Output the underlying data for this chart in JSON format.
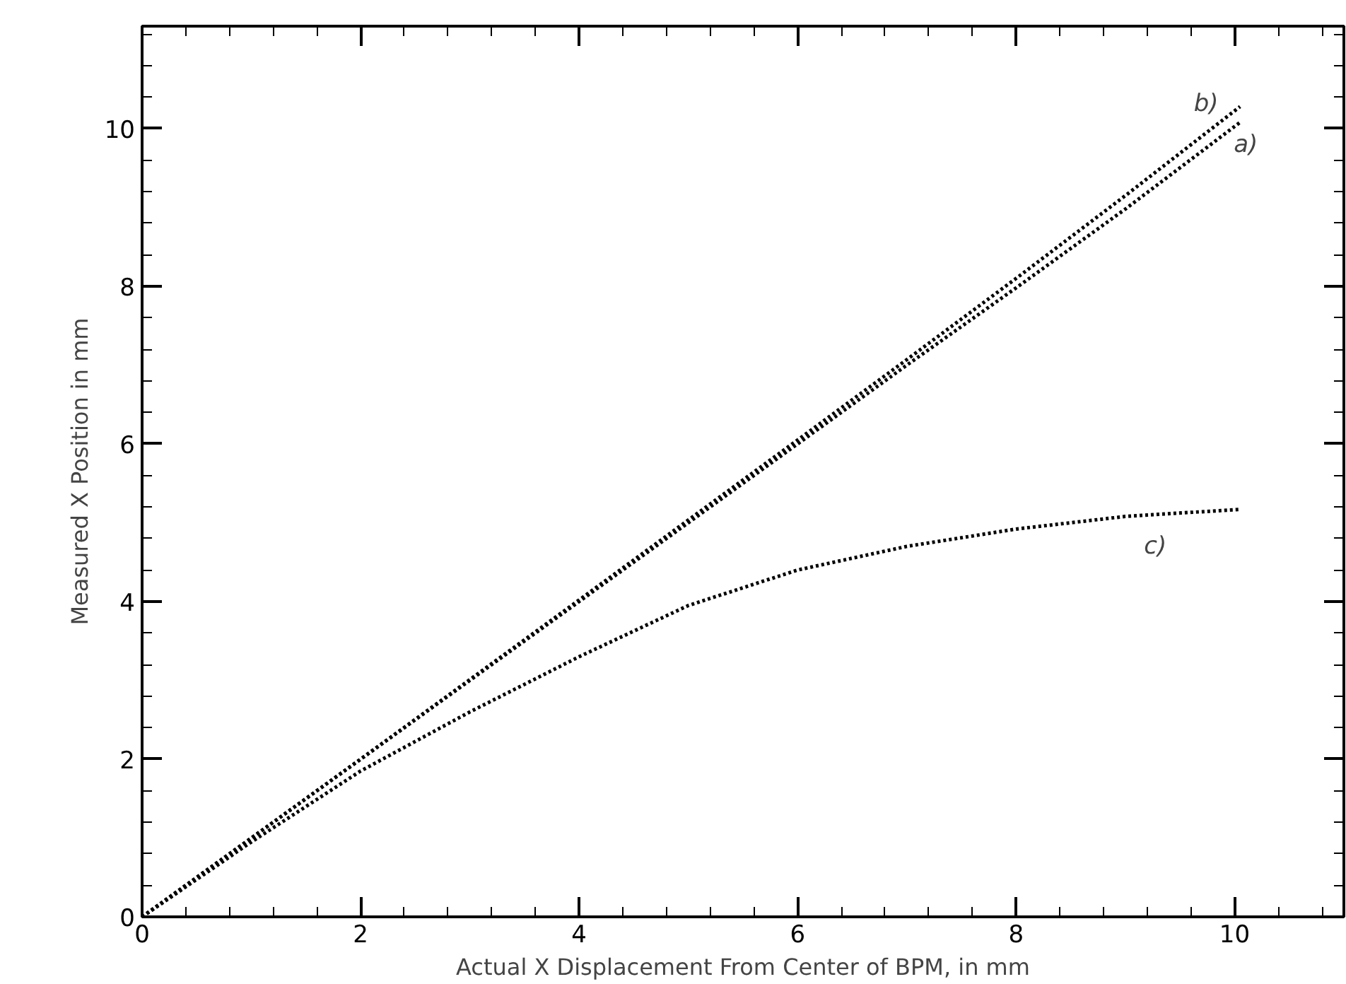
{
  "chart_data": {
    "type": "line",
    "xlabel": "Actual X Displacement From Center of BPM, in mm",
    "ylabel": "Measured X Position in mm",
    "xlim": [
      0,
      11
    ],
    "ylim": [
      0,
      11.3
    ],
    "xticks": [
      0,
      2,
      4,
      6,
      8,
      10
    ],
    "yticks": [
      0,
      2,
      4,
      6,
      8,
      10
    ],
    "grid": false,
    "legend": false,
    "line_style": "dotted",
    "marker": "none",
    "series": [
      {
        "name": "a)",
        "color": "#000000",
        "x": [
          0,
          2,
          4,
          6,
          7,
          8,
          9,
          10.05
        ],
        "values": [
          0,
          2.0,
          4.0,
          6.0,
          7.0,
          7.98,
          8.98,
          10.08
        ]
      },
      {
        "name": "b)",
        "color": "#000000",
        "x": [
          0,
          2,
          4,
          6,
          7,
          8,
          9,
          10.05
        ],
        "values": [
          0,
          2.0,
          4.02,
          6.05,
          7.07,
          8.1,
          9.15,
          10.28
        ]
      },
      {
        "name": "c)",
        "color": "#000000",
        "x": [
          0,
          1,
          2,
          3,
          4,
          5,
          6,
          7,
          8,
          9,
          10.05
        ],
        "values": [
          0,
          0.95,
          1.85,
          2.6,
          3.3,
          3.95,
          4.4,
          4.7,
          4.92,
          5.08,
          5.17
        ]
      }
    ]
  }
}
